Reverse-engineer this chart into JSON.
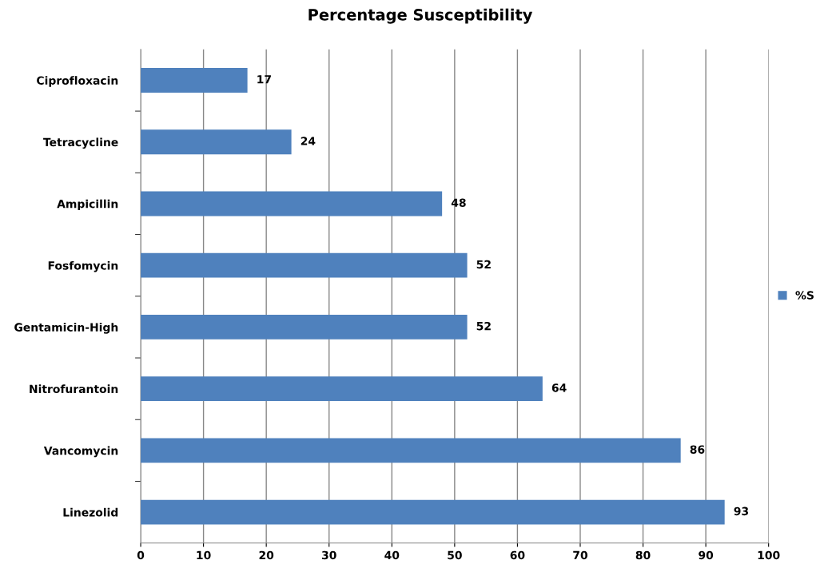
{
  "chart_data": {
    "type": "bar",
    "orientation": "horizontal",
    "title": "Percentage Susceptibility",
    "categories": [
      "Ciprofloxacin",
      "Tetracycline",
      "Ampicillin",
      "Fosfomycin",
      "Gentamicin-High",
      "Nitrofurantoin",
      "Vancomycin",
      "Linezolid"
    ],
    "series": [
      {
        "name": "%S",
        "color": "#4f81bd",
        "values": [
          17,
          24,
          48,
          52,
          52,
          64,
          86,
          93
        ]
      }
    ],
    "xlim": [
      0,
      100
    ],
    "xticks": [
      0,
      10,
      20,
      30,
      40,
      50,
      60,
      70,
      80,
      90,
      100
    ],
    "grid": "x",
    "legend": "right",
    "data_labels": true
  }
}
